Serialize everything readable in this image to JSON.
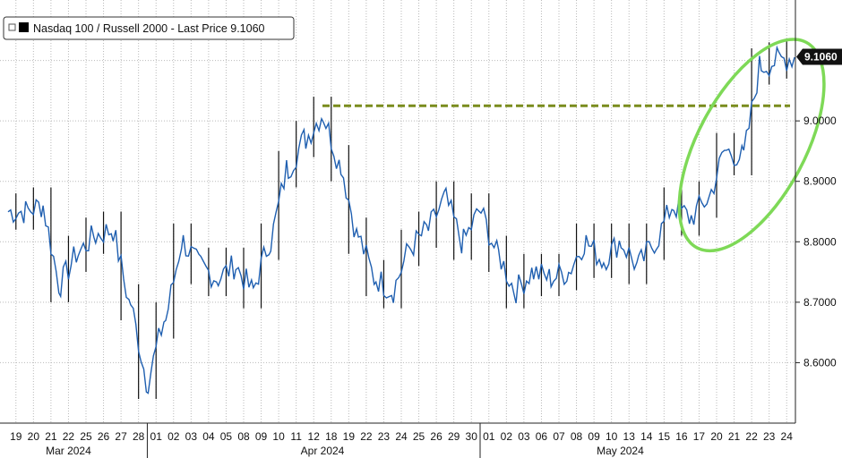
{
  "chart_data": {
    "type": "line",
    "style": "bar-candles",
    "title": "",
    "legend": {
      "entries": [
        "Nasdaq 100 / Russell 2000 - Last Price 9.1060"
      ],
      "placement": "top-left"
    },
    "last_price": 9.106,
    "last_price_label": "9.1060",
    "ylim": [
      8.5,
      9.2
    ],
    "yticks": [
      8.6,
      8.7,
      8.8,
      8.9,
      9.0
    ],
    "ytick_labels": [
      "8.6000",
      "8.7000",
      "8.8000",
      "8.9000",
      "9.0000"
    ],
    "grid": true,
    "x": [
      "19",
      "20",
      "21",
      "22",
      "25",
      "26",
      "27",
      "28",
      "01",
      "02",
      "03",
      "04",
      "05",
      "08",
      "09",
      "10",
      "11",
      "12",
      "18",
      "19",
      "22",
      "23",
      "24",
      "25",
      "26",
      "29",
      "30",
      "01",
      "02",
      "03",
      "06",
      "07",
      "08",
      "09",
      "10",
      "13",
      "14",
      "15",
      "16",
      "17",
      "20",
      "21",
      "22",
      "23",
      "24"
    ],
    "xtick_labels": [
      "19",
      "20",
      "21",
      "22",
      "25",
      "26",
      "27",
      "28",
      "01",
      "02",
      "03",
      "04",
      "05",
      "08",
      "09",
      "10",
      "11",
      "12",
      "18",
      "19",
      "22",
      "23",
      "24",
      "25",
      "26",
      "29",
      "30",
      "01",
      "02",
      "03",
      "06",
      "07",
      "08",
      "09",
      "10",
      "13",
      "14",
      "15",
      "16",
      "17",
      "20",
      "21",
      "22",
      "23",
      "24"
    ],
    "months": [
      {
        "label": "Mar 2024",
        "index": 3.0
      },
      {
        "label": "Apr 2024",
        "index": 17.5
      },
      {
        "label": "May 2024",
        "index": 34.5
      }
    ],
    "month_boundaries": [
      7.5,
      26.5
    ],
    "series": [
      {
        "color": "#1f5fb0",
        "values": [
          8.85,
          8.86,
          8.73,
          8.78,
          8.81,
          8.82,
          8.7,
          8.57,
          8.67,
          8.8,
          8.76,
          8.74,
          8.76,
          8.72,
          8.8,
          8.92,
          8.97,
          9.01,
          8.93,
          8.81,
          8.74,
          8.72,
          8.79,
          8.82,
          8.87,
          8.8,
          8.85,
          8.78,
          8.72,
          8.75,
          8.74,
          8.75,
          8.8,
          8.77,
          8.8,
          8.76,
          8.8,
          8.86,
          8.84,
          8.87,
          8.95,
          8.94,
          9.09,
          9.1,
          9.106
        ]
      }
    ],
    "reference_line": {
      "value": 9.025,
      "color": "#7a8c1e",
      "style": "dashed",
      "from_index": 17.5
    },
    "annotation": {
      "shape": "ellipse",
      "color": "#7ed957",
      "highlights": "last five sessions"
    }
  }
}
